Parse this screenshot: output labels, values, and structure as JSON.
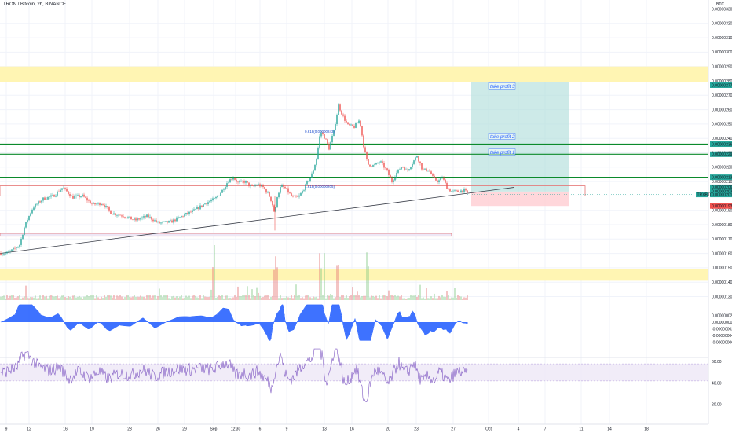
{
  "header": {
    "title": "TRON / Bitcoin, 2h, BINANCE",
    "currency": "BTC"
  },
  "chart_data": {
    "type": "candlestick",
    "symbol": "TRON / Bitcoin",
    "interval": "2h",
    "exchange": "BINANCE",
    "price_axis": {
      "unit": "BTC",
      "ticks": [
        "0.00000330",
        "0.00000320",
        "0.00000310",
        "0.00000300",
        "0.00000290",
        "0.00000280",
        "0.00000270",
        "0.00000260",
        "0.00000250",
        "0.00000240",
        "0.00000230",
        "0.00000220",
        "0.00000210",
        "0.00000200",
        "0.00000190",
        "0.00000180",
        "0.00000170",
        "0.00000160",
        "0.00000150",
        "0.00000140",
        "0.00000130"
      ],
      "ylim": [
        1.27e-06,
        3.33e-06
      ]
    },
    "time_axis": {
      "ticks": [
        "9",
        "12",
        "16",
        "19",
        "23",
        "26",
        "29",
        "Sep",
        "12:30",
        "6",
        "9",
        "13",
        "16",
        "20",
        "23",
        "27",
        "Oct",
        "4",
        "7",
        "11",
        "14",
        "18"
      ]
    },
    "price_path": [
      [
        0,
        1.6e-06
      ],
      [
        8,
        1.6e-06
      ],
      [
        18,
        1.63e-06
      ],
      [
        25,
        1.66e-06
      ],
      [
        32,
        1.8e-06
      ],
      [
        42,
        1.92e-06
      ],
      [
        55,
        1.98e-06
      ],
      [
        68,
        2e-06
      ],
      [
        80,
        2.06e-06
      ],
      [
        92,
        1.99e-06
      ],
      [
        105,
        2e-06
      ],
      [
        118,
        1.94e-06
      ],
      [
        130,
        1.95e-06
      ],
      [
        142,
        1.88e-06
      ],
      [
        158,
        1.86e-06
      ],
      [
        172,
        1.83e-06
      ],
      [
        188,
        1.86e-06
      ],
      [
        202,
        1.81e-06
      ],
      [
        218,
        1.82e-06
      ],
      [
        232,
        1.86e-06
      ],
      [
        248,
        1.9e-06
      ],
      [
        262,
        1.95e-06
      ],
      [
        274,
        1.98e-06
      ],
      [
        282,
        2.03e-06
      ],
      [
        290,
        2.1e-06
      ],
      [
        297,
        2.13e-06
      ],
      [
        303,
        2.09e-06
      ],
      [
        312,
        2.1e-06
      ],
      [
        320,
        2.06e-06
      ],
      [
        328,
        2.08e-06
      ],
      [
        335,
        2.06e-06
      ],
      [
        342,
        2.01e-06
      ],
      [
        346,
        1.96e-06
      ],
      [
        350,
        1.87e-06
      ],
      [
        353,
        2e-06
      ],
      [
        358,
        2.07e-06
      ],
      [
        364,
        2.05e-06
      ],
      [
        372,
        1.99e-06
      ],
      [
        380,
        1.99e-06
      ],
      [
        386,
        2.04e-06
      ],
      [
        393,
        2.11e-06
      ],
      [
        398,
        2.16e-06
      ],
      [
        403,
        2.26e-06
      ],
      [
        408,
        2.45e-06
      ],
      [
        414,
        2.4e-06
      ],
      [
        419,
        2.33e-06
      ],
      [
        425,
        2.45e-06
      ],
      [
        431,
        2.63e-06
      ],
      [
        437,
        2.55e-06
      ],
      [
        443,
        2.49e-06
      ],
      [
        451,
        2.48e-06
      ],
      [
        458,
        2.53e-06
      ],
      [
        463,
        2.35e-06
      ],
      [
        468,
        2.22e-06
      ],
      [
        476,
        2.21e-06
      ],
      [
        484,
        2.24e-06
      ],
      [
        492,
        2.18e-06
      ],
      [
        499,
        2.1e-06
      ],
      [
        505,
        2.16e-06
      ],
      [
        512,
        2.21e-06
      ],
      [
        518,
        2.17e-06
      ],
      [
        524,
        2.22e-06
      ],
      [
        531,
        2.28e-06
      ],
      [
        538,
        2.18e-06
      ],
      [
        546,
        2.18e-06
      ],
      [
        552,
        2.12e-06
      ],
      [
        558,
        2.1e-06
      ],
      [
        563,
        2.13e-06
      ],
      [
        570,
        2.05e-06
      ],
      [
        576,
        2.03e-06
      ],
      [
        583,
        2.03e-06
      ],
      [
        590,
        2.04e-06
      ],
      [
        595,
        2.02e-06
      ]
    ],
    "horizontal_lines": [
      2.36e-06,
      2.29e-06,
      2.13e-06
    ],
    "zones": [
      {
        "from": 2.79e-06,
        "to": 2.9e-06,
        "color": "#fff5b3"
      },
      {
        "from": 1.41e-06,
        "to": 1.49e-06,
        "color": "#fff5b3"
      }
    ],
    "trendline": {
      "from": [
        0,
        1.6e-06
      ],
      "to": [
        655,
        2.06e-06
      ]
    },
    "fib_labels": [
      {
        "text": "0.618(0.00000243)",
        "price": 2.43e-06,
        "x": 388
      },
      {
        "text": "1.618(0.00000205)",
        "price": 2.05e-06,
        "x": 388
      }
    ],
    "take_profit": [
      {
        "label": "take profit 3",
        "price": 2.76e-06
      },
      {
        "label": "take profit 2",
        "price": 2.41e-06
      },
      {
        "label": "take profit 1",
        "price": 2.3e-06
      }
    ],
    "position": {
      "entry": 2.03e-06,
      "target": 2.79e-06,
      "stop": 1.93e-06
    },
    "price_badges": [
      {
        "text": "0.00000277",
        "price": 2.77e-06,
        "color": "#26a69a"
      },
      {
        "text": "0.00000236",
        "price": 2.36e-06,
        "color": "#26a69a"
      },
      {
        "text": "0.00000229",
        "price": 2.29e-06,
        "color": "#26a69a"
      },
      {
        "text": "0.00000213",
        "price": 2.13e-06,
        "color": "#26a69a"
      },
      {
        "text": "0.00000206",
        "price": 2.06e-06,
        "color": "#26a69a"
      },
      {
        "text": "0.00000203",
        "price": 2.03e-06,
        "color": "#26a69a"
      },
      {
        "text": "0.00000201",
        "price": 2.01e-06,
        "color": "#26a69a"
      },
      {
        "text": "0.00000193",
        "price": 1.93e-06,
        "color": "#ef5350"
      }
    ],
    "last_price_tag": "TRXBTC",
    "macd_axis": {
      "ticks": [
        "0.00000002",
        "0.00000000",
        "-0.00000002",
        "-0.00000004",
        "-0.00000006"
      ]
    },
    "rsi_axis": {
      "ticks": [
        "60.00",
        "40.00",
        "20.00"
      ],
      "band": [
        42,
        58
      ]
    },
    "colors": {
      "grid": "#f0f3fa",
      "zone": "#fff5b3",
      "green_line": "#0b8a2b",
      "trend": "#363a45",
      "target": "#b2dfdb",
      "stop": "#ffcdd2",
      "macd": "#2962ff",
      "rsi": "#7e57c2",
      "rsi_band": "#ede7f6"
    }
  }
}
